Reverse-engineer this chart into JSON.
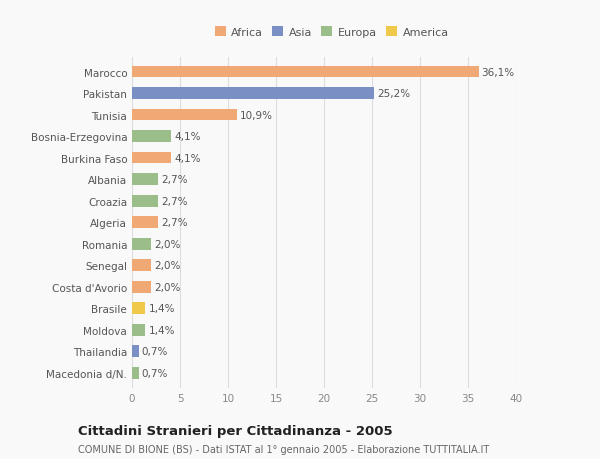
{
  "categories": [
    "Marocco",
    "Pakistan",
    "Tunisia",
    "Bosnia-Erzegovina",
    "Burkina Faso",
    "Albania",
    "Croazia",
    "Algeria",
    "Romania",
    "Senegal",
    "Costa d'Avorio",
    "Brasile",
    "Moldova",
    "Thailandia",
    "Macedonia d/N."
  ],
  "values": [
    36.1,
    25.2,
    10.9,
    4.1,
    4.1,
    2.7,
    2.7,
    2.7,
    2.0,
    2.0,
    2.0,
    1.4,
    1.4,
    0.7,
    0.7
  ],
  "labels": [
    "36,1%",
    "25,2%",
    "10,9%",
    "4,1%",
    "4,1%",
    "2,7%",
    "2,7%",
    "2,7%",
    "2,0%",
    "2,0%",
    "2,0%",
    "1,4%",
    "1,4%",
    "0,7%",
    "0,7%"
  ],
  "colors": [
    "#F0A875",
    "#7A8FC4",
    "#F0A875",
    "#9BBD8A",
    "#F0A875",
    "#9BBD8A",
    "#9BBD8A",
    "#F0A875",
    "#9BBD8A",
    "#F0A875",
    "#F0A875",
    "#F0C84A",
    "#9BBD8A",
    "#7A8FC4",
    "#9BBD8A"
  ],
  "legend_labels": [
    "Africa",
    "Asia",
    "Europa",
    "America"
  ],
  "legend_colors": [
    "#F0A875",
    "#7A8FC4",
    "#9BBD8A",
    "#F0C84A"
  ],
  "xlim": [
    0,
    40
  ],
  "xticks": [
    0,
    5,
    10,
    15,
    20,
    25,
    30,
    35,
    40
  ],
  "title": "Cittadini Stranieri per Cittadinanza - 2005",
  "subtitle": "COMUNE DI BIONE (BS) - Dati ISTAT al 1° gennaio 2005 - Elaborazione TUTTITALIA.IT",
  "background_color": "#f9f9f9",
  "grid_color": "#dddddd",
  "bar_height": 0.55,
  "label_fontsize": 7.5,
  "tick_fontsize": 7.5,
  "title_fontsize": 9.5,
  "subtitle_fontsize": 7.0
}
